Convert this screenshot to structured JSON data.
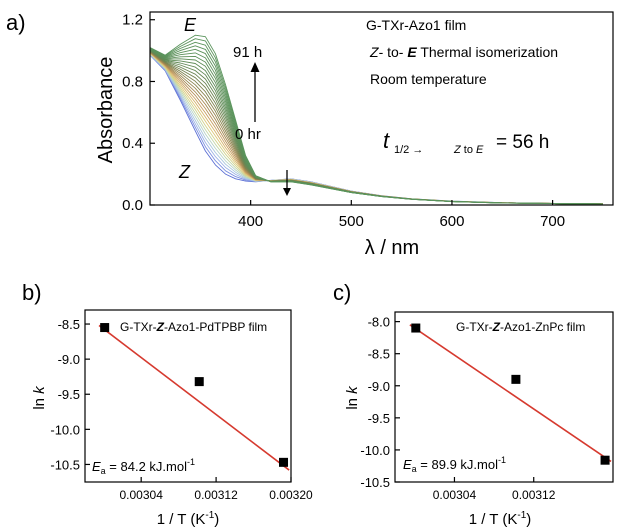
{
  "chart_data": [
    {
      "panel_label": "a)",
      "type": "line",
      "xlabel": "λ / nm",
      "ylabel": "Absorbance",
      "xlim": [
        300,
        760
      ],
      "ylim": [
        0.0,
        1.25
      ],
      "x_ticks": [
        400,
        500,
        600,
        700
      ],
      "y_ticks": [
        0.0,
        0.4,
        0.8,
        1.2
      ],
      "x_tick_labels": [
        "400",
        "500",
        "600",
        "700"
      ],
      "y_tick_labels": [
        "0.0",
        "0.4",
        "0.8",
        "1.2"
      ],
      "legend_lines": [
        "G-TXr-Azo1 film",
        "Z- to- E Thermal isomerization",
        "Room temperature"
      ],
      "annotations": {
        "label_E": "E",
        "label_Z": "Z",
        "time_top": "91 h",
        "time_bottom": "0 hr",
        "half_life_symbol": "t",
        "half_life_sub": "1/2 →",
        "half_life_sub2": "Z to E",
        "half_life_value": "= 56 h"
      },
      "series_count": 28,
      "curve_colors": [
        "#5b6fd4",
        "#7b8fe0",
        "#9db3e6",
        "#a8c6dc",
        "#b7d3c6",
        "#c4d7a8",
        "#d3d38c",
        "#ddc87a",
        "#d6b46c",
        "#c9a062",
        "#b79159",
        "#a58a52",
        "#97864f",
        "#8a844e",
        "#7e834f",
        "#748451",
        "#6c8653",
        "#668854",
        "#628a56",
        "#5f8c57",
        "#5e8e58",
        "#5d8f59",
        "#5c905a",
        "#5c915a",
        "#5b925b",
        "#5b935b",
        "#5b935c",
        "#5a945c"
      ],
      "peak_E_range": [
        0.0,
        1.1
      ],
      "curve_shape_points": {
        "x": [
          300,
          315,
          330,
          345,
          355,
          365,
          375,
          385,
          395,
          405,
          420,
          440,
          460,
          480,
          500,
          530,
          560,
          600,
          650,
          700,
          750
        ],
        "initial": [
          0.97,
          0.87,
          0.68,
          0.48,
          0.35,
          0.26,
          0.2,
          0.17,
          0.155,
          0.15,
          0.16,
          0.17,
          0.15,
          0.12,
          0.09,
          0.06,
          0.04,
          0.025,
          0.015,
          0.01,
          0.008
        ],
        "final": [
          1.02,
          0.97,
          1.04,
          1.1,
          1.09,
          0.98,
          0.78,
          0.55,
          0.32,
          0.19,
          0.15,
          0.15,
          0.13,
          0.105,
          0.08,
          0.055,
          0.037,
          0.022,
          0.013,
          0.009,
          0.007
        ]
      }
    },
    {
      "panel_label": "b)",
      "type": "scatter",
      "legend": "G-TXr-Z-Azo1-PdTPBP film",
      "legend_parts": [
        "G-TXr-",
        "Z",
        "-Azo1-PdTPBP film"
      ],
      "xlabel": "1 / T (K⁻¹)",
      "ylabel": "ln k",
      "xlim": [
        0.00298,
        0.0032
      ],
      "ylim": [
        -10.75,
        -8.3
      ],
      "x_ticks": [
        0.00304,
        0.00312,
        0.0032
      ],
      "x_tick_labels": [
        "0.00304",
        "0.00312",
        "0.00320"
      ],
      "y_ticks": [
        -8.5,
        -9.0,
        -9.5,
        -10.0,
        -10.5
      ],
      "y_tick_labels": [
        "-8.5",
        "-9.0",
        "-9.5",
        "-10.0",
        "-10.5"
      ],
      "points": {
        "x": [
          0.003001,
          0.003102,
          0.003192
        ],
        "y": [
          -8.55,
          -9.32,
          -10.47
        ]
      },
      "fit_line": {
        "x": [
          0.002995,
          0.003198
        ],
        "y": [
          -8.52,
          -10.58
        ]
      },
      "annotation": "Ea = 84.2 kJ.mol-1",
      "annotation_parts": [
        "E",
        "a",
        " = 84.2 kJ.mol",
        "-1"
      ]
    },
    {
      "panel_label": "c)",
      "type": "scatter",
      "legend": "G-TXr-Z-Azo1-ZnPc film",
      "legend_parts": [
        "G-TXr-",
        "Z",
        "-Azo1-ZnPc film"
      ],
      "xlabel": "1 / T (K⁻¹)",
      "ylabel": "ln k",
      "xlim": [
        0.00298,
        0.0032
      ],
      "ylim": [
        -10.5,
        -7.85
      ],
      "x_ticks": [
        0.00304,
        0.00312
      ],
      "x_tick_labels": [
        "0.00304",
        "0.00312"
      ],
      "y_ticks": [
        -8.0,
        -8.5,
        -9.0,
        -9.5,
        -10.0,
        -10.5
      ],
      "y_tick_labels": [
        "-8.0",
        "-8.5",
        "-9.0",
        "-9.5",
        "-10.0",
        "-10.5"
      ],
      "points": {
        "x": [
          0.003001,
          0.003102,
          0.003192
        ],
        "y": [
          -8.1,
          -8.9,
          -10.16
        ]
      },
      "fit_line": {
        "x": [
          0.002995,
          0.003198
        ],
        "y": [
          -8.05,
          -10.18
        ]
      },
      "annotation": "Ea = 89.9 kJ.mol-1",
      "annotation_parts": [
        "E",
        "a",
        " = 89.9 kJ.mol",
        "-1"
      ]
    }
  ],
  "colors": {
    "fit_line": "#d63a2f",
    "marker": "#000000",
    "axis": "#000000"
  }
}
